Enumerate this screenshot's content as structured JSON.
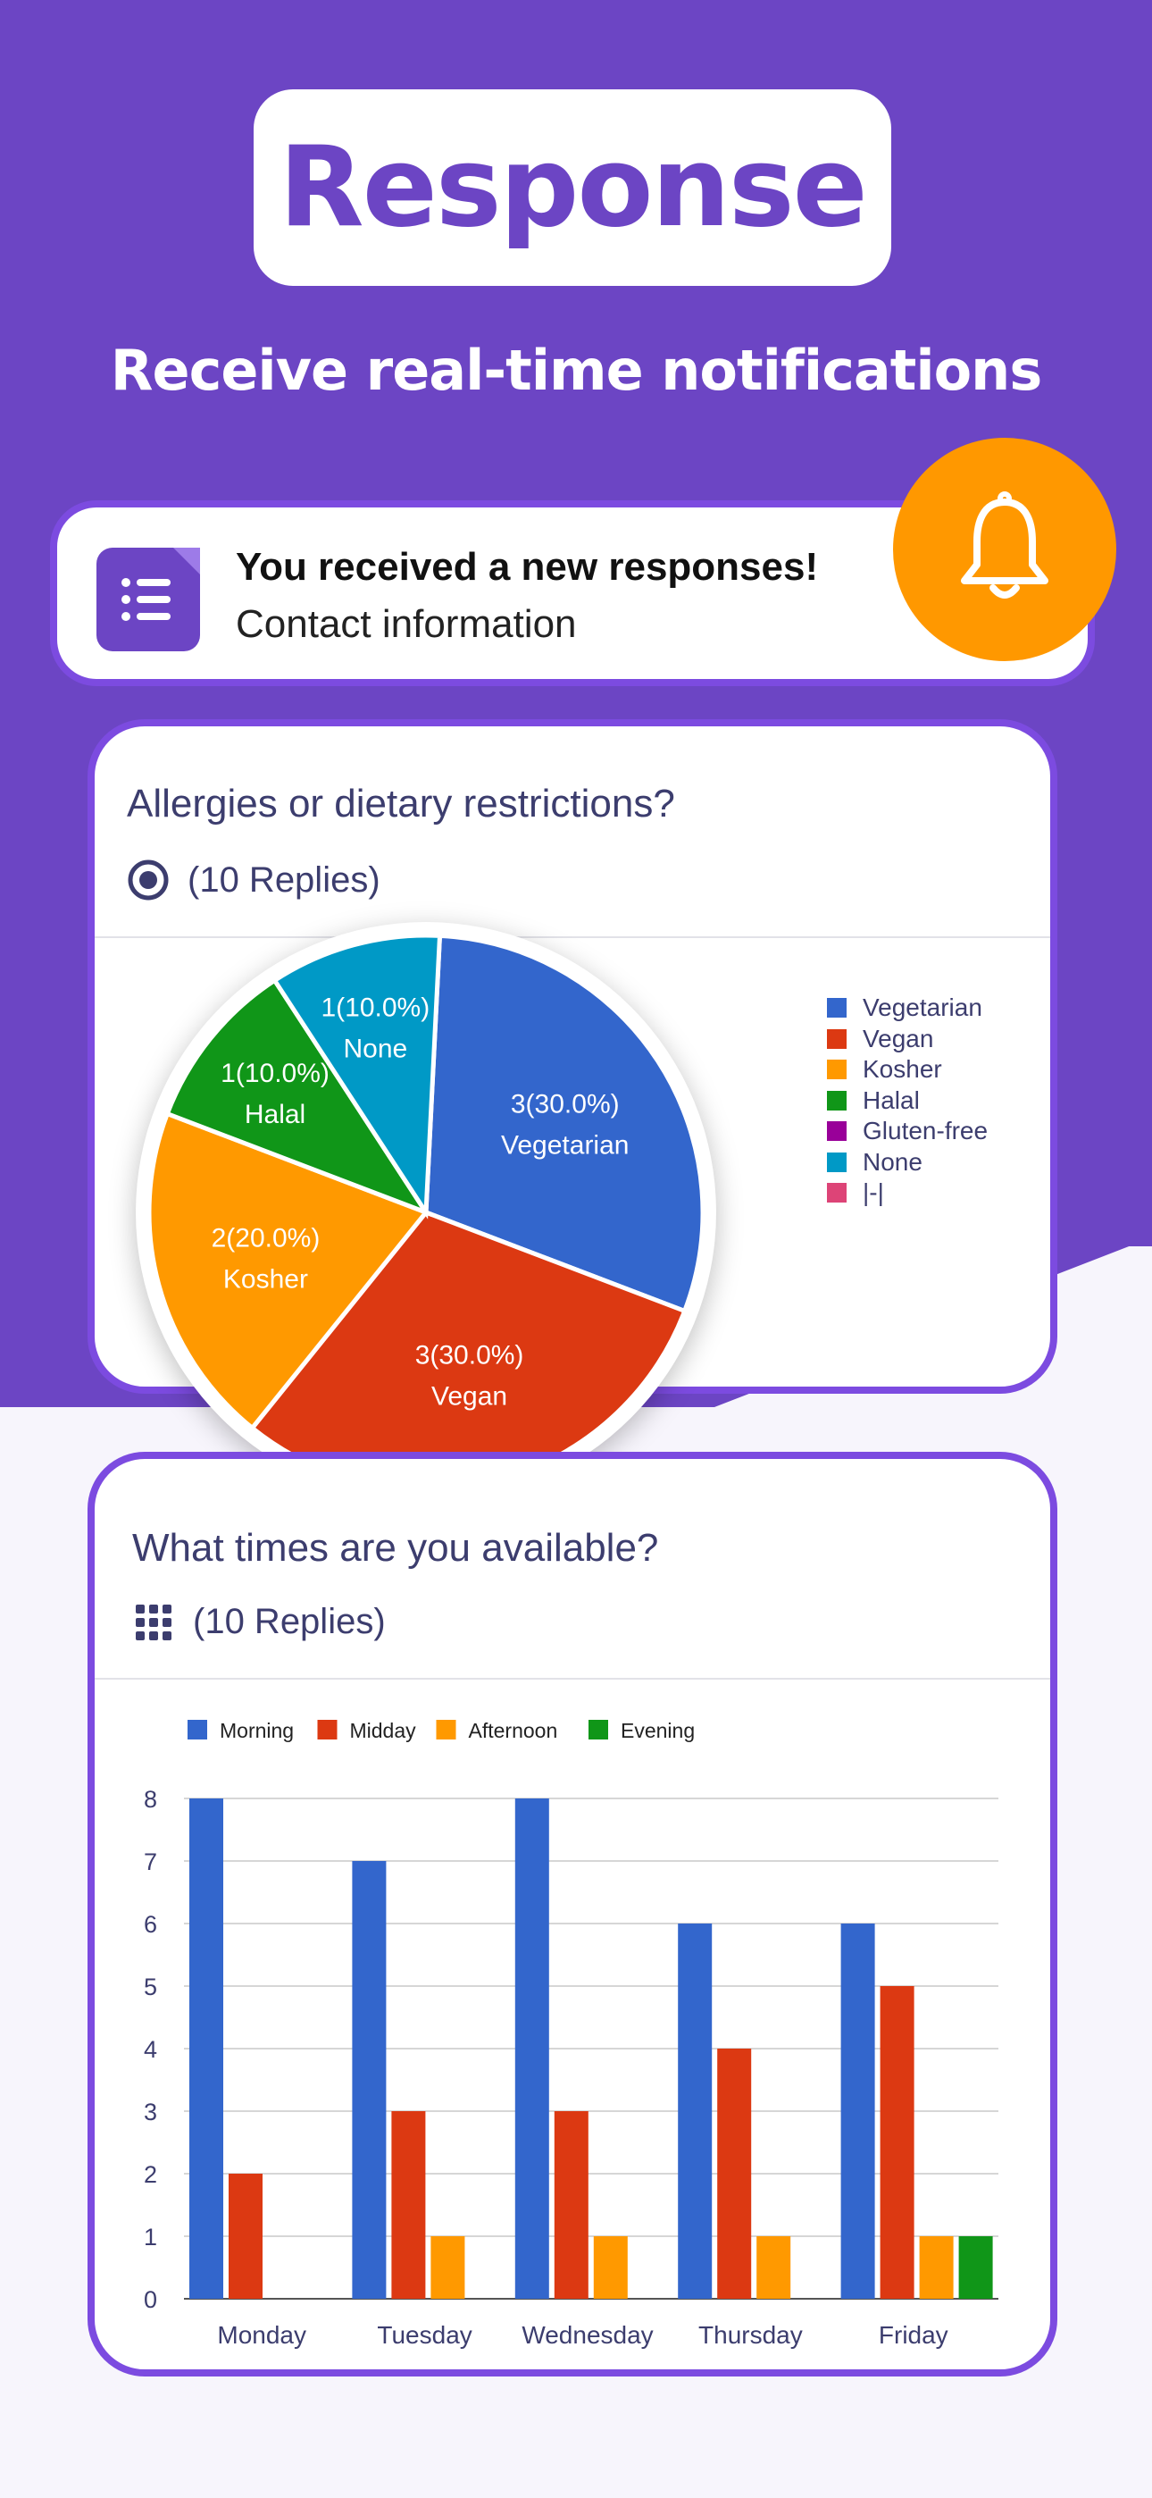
{
  "header": {
    "title": "Response",
    "subtitle": "Receive real-time notifications"
  },
  "notification": {
    "title": "You received a new responses!",
    "subtitle": "Contact information",
    "icon": "form-list-icon",
    "badge_icon": "bell-icon"
  },
  "colors": {
    "purple": "#6c45c4",
    "border": "#7c4be0",
    "orange": "#ff9800"
  },
  "question1": {
    "title": "Allergies or dietary restrictions?",
    "replies": "(10 Replies)",
    "icon": "radio-button-icon"
  },
  "question2": {
    "title": "What times are you available?",
    "replies": "(10 Replies)",
    "icon": "grid-icon"
  },
  "chart_data": [
    {
      "type": "pie",
      "slices": [
        {
          "label": "Vegetarian",
          "value": 3,
          "text": "3(30.0%)",
          "color": "#3366cc"
        },
        {
          "label": "Vegan",
          "value": 3,
          "text": "3(30.0%)",
          "color": "#dc3912"
        },
        {
          "label": "Kosher",
          "value": 2,
          "text": "2(20.0%)",
          "color": "#ff9900"
        },
        {
          "label": "Halal",
          "value": 1,
          "text": "1(10.0%)",
          "color": "#109618"
        },
        {
          "label": "None",
          "value": 1,
          "text": "1(10.0%)",
          "color": "#0099c6"
        }
      ],
      "legend": [
        {
          "label": "Vegetarian",
          "color": "#3366cc"
        },
        {
          "label": "Vegan",
          "color": "#dc3912"
        },
        {
          "label": "Kosher",
          "color": "#ff9900"
        },
        {
          "label": "Halal",
          "color": "#109618"
        },
        {
          "label": "Gluten-free",
          "color": "#990099"
        },
        {
          "label": "None",
          "color": "#0099c6"
        },
        {
          "label": "|-|",
          "color": "#dd4477"
        }
      ],
      "legend_position": "right"
    },
    {
      "type": "bar",
      "categories": [
        "Monday",
        "Tuesday",
        "Wednesday",
        "Thursday",
        "Friday"
      ],
      "series": [
        {
          "name": "Morning",
          "values": [
            8,
            7,
            8,
            6,
            6
          ],
          "color": "#3366cc"
        },
        {
          "name": "Midday",
          "values": [
            2,
            3,
            3,
            4,
            5
          ],
          "color": "#dc3912"
        },
        {
          "name": "Afternoon",
          "values": [
            0,
            1,
            1,
            1,
            1
          ],
          "color": "#ff9900"
        },
        {
          "name": "Evening",
          "values": [
            0,
            0,
            0,
            0,
            1
          ],
          "color": "#109618"
        }
      ],
      "ylim": [
        0,
        8
      ],
      "yticks": [
        "0",
        "1",
        "2",
        "3",
        "4",
        "5",
        "6",
        "7",
        "8"
      ],
      "grid": true,
      "legend_position": "top-left"
    }
  ]
}
